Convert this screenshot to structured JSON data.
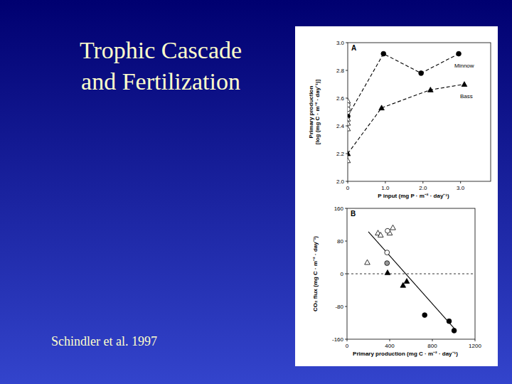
{
  "slide": {
    "title_lines": [
      "Trophic Cascade",
      "and Fertilization"
    ],
    "citation": "Schindler et al. 1997"
  },
  "chart_data": [
    {
      "type": "line",
      "panel_label": "A",
      "xlabel": "P input (mg P · m⁻² · day⁻¹)",
      "ylabel": [
        "Primary production",
        "[log (mg C · m⁻² · day⁻¹)]"
      ],
      "xlim": [
        0,
        3.8
      ],
      "xticks": [
        0,
        {
          "value": 1,
          "label": "1.0"
        },
        {
          "value": 2,
          "label": "2.0"
        },
        {
          "value": 3,
          "label": "3.0"
        }
      ],
      "ylim": [
        2,
        3
      ],
      "yticks": [
        {
          "value": 2,
          "label": "2.0"
        },
        {
          "value": 2.2,
          "label": "2.2"
        },
        {
          "value": 2.4,
          "label": "2.4"
        },
        {
          "value": 2.6,
          "label": "2.6"
        },
        {
          "value": 2.8,
          "label": "2.8"
        },
        {
          "value": 3,
          "label": "3.0"
        }
      ],
      "grid": false,
      "series": [
        {
          "name": "Minnow",
          "type": "line",
          "color": "#000000",
          "marker": "circle",
          "line_style": "dashed",
          "x": [
            0,
            0.95,
            1.95,
            2.95
          ],
          "values": [
            2.47,
            2.92,
            2.78,
            2.92
          ]
        },
        {
          "name": "Bass",
          "type": "line",
          "color": "#000000",
          "marker": "triangle",
          "line_style": "dashed",
          "x": [
            0,
            0.9,
            2.2,
            3.1
          ],
          "values": [
            2.2,
            2.53,
            2.66,
            2.7
          ]
        },
        {
          "type": "scatter",
          "color": "#000000",
          "marker": "triangle-open",
          "x": [
            0,
            0,
            0,
            0,
            0
          ],
          "values": [
            2.58,
            2.45,
            2.42,
            2.38,
            2.15
          ]
        },
        {
          "type": "scatter",
          "color": "#000000",
          "marker": "circle-open",
          "x": [
            0,
            0,
            0
          ],
          "values": [
            2.55,
            2.5,
            2.52
          ]
        }
      ]
    },
    {
      "type": "scatter",
      "panel_label": "B",
      "xlabel": "Primary production (mg C · m⁻² · day⁻¹)",
      "ylabel": [
        "CO₂ flux (mg C · m⁻² · day⁻¹)"
      ],
      "xlim": [
        0,
        1200
      ],
      "xticks": [
        0,
        400,
        800,
        1200
      ],
      "ylim": [
        -160,
        160
      ],
      "yticks": [
        -160,
        -80,
        0,
        80,
        160
      ],
      "grid": false,
      "hlines": [
        0
      ],
      "series": [
        {
          "type": "line",
          "color": "#000000",
          "marker": "none",
          "line_style": "solid",
          "x": [
            200,
            1020
          ],
          "values": [
            103,
            -138
          ]
        },
        {
          "type": "scatter",
          "color": "#000000",
          "marker": "triangle-open",
          "x": [
            190,
            290,
            315,
            400,
            430
          ],
          "values": [
            28,
            100,
            95,
            100,
            113
          ]
        },
        {
          "type": "scatter",
          "color": "#000000",
          "marker": "circle-open",
          "x": [
            375,
            380
          ],
          "values": [
            52,
            105
          ]
        },
        {
          "type": "scatter",
          "color": "#999999",
          "marker": "circle",
          "x": [
            375
          ],
          "values": [
            26
          ]
        },
        {
          "type": "scatter",
          "color": "#000000",
          "marker": "triangle",
          "x": [
            380,
            525,
            560
          ],
          "values": [
            3,
            -28,
            -18
          ]
        },
        {
          "type": "scatter",
          "color": "#000000",
          "marker": "circle",
          "x": [
            728,
            957,
            1004
          ],
          "values": [
            -101,
            -116,
            -139
          ]
        }
      ]
    }
  ]
}
